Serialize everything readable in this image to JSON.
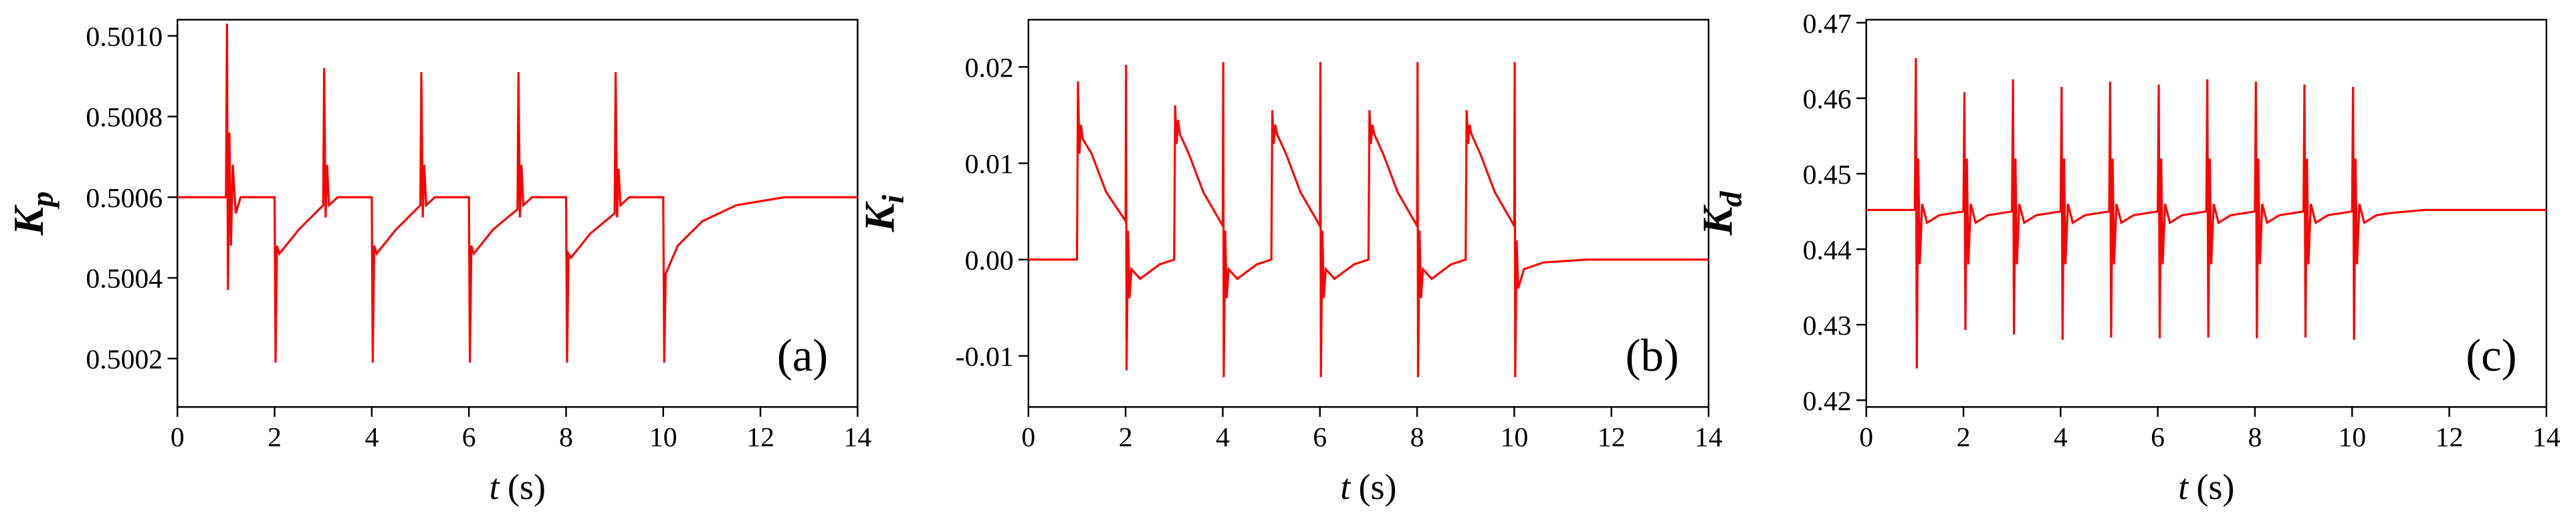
{
  "chart_data": [
    {
      "type": "line",
      "panel_label": "(a)",
      "ylabel": "K",
      "ylabel_subscript": "p",
      "xlabel_variable": "t",
      "xlabel_unit": "(s)",
      "color": "#ff0000",
      "xlim": [
        0,
        14
      ],
      "xticks": [
        0,
        2,
        4,
        6,
        8,
        10,
        12,
        14
      ],
      "ylim": [
        0.50008,
        0.50104
      ],
      "yticks": [
        0.5002,
        0.5004,
        0.5006,
        0.5008,
        {
          "value": 0.501,
          "label": "0.5010"
        }
      ],
      "x": [
        0,
        1,
        1.02,
        1.04,
        1.07,
        1.1,
        1.14,
        1.2,
        1.3,
        2,
        2.02,
        2.05,
        2.1,
        2.5,
        3,
        3.02,
        3.05,
        3.08,
        3.12,
        3.3,
        4,
        4.02,
        4.05,
        4.1,
        4.5,
        5,
        5.02,
        5.05,
        5.08,
        5.12,
        5.3,
        6,
        6.02,
        6.05,
        6.1,
        6.5,
        7,
        7.02,
        7.05,
        7.08,
        7.12,
        7.3,
        8,
        8.02,
        8.05,
        8.1,
        8.5,
        9,
        9.02,
        9.05,
        9.08,
        9.12,
        9.3,
        10,
        10.02,
        10.05,
        10.3,
        10.8,
        11.5,
        12.5,
        14
      ],
      "values": [
        0.5006,
        0.5006,
        0.50103,
        0.50037,
        0.50076,
        0.50048,
        0.50068,
        0.50056,
        0.5006,
        0.5006,
        0.50019,
        0.50048,
        0.50046,
        0.50052,
        0.50058,
        0.50092,
        0.50055,
        0.50068,
        0.50058,
        0.5006,
        0.5006,
        0.50019,
        0.50048,
        0.50046,
        0.50052,
        0.50058,
        0.50091,
        0.50055,
        0.50068,
        0.50058,
        0.5006,
        0.5006,
        0.50019,
        0.50048,
        0.50046,
        0.50052,
        0.50057,
        0.50091,
        0.50055,
        0.50068,
        0.50058,
        0.5006,
        0.5006,
        0.50019,
        0.50046,
        0.50045,
        0.50051,
        0.50056,
        0.50091,
        0.50055,
        0.50067,
        0.50058,
        0.5006,
        0.5006,
        0.50019,
        0.50041,
        0.50048,
        0.50054,
        0.50058,
        0.5006,
        0.5006
      ]
    },
    {
      "type": "line",
      "panel_label": "(b)",
      "ylabel": "K",
      "ylabel_subscript": "i",
      "xlabel_variable": "t",
      "xlabel_unit": "(s)",
      "color": "#ff0000",
      "xlim": [
        0,
        14
      ],
      "xticks": [
        0,
        2,
        4,
        6,
        8,
        10,
        12,
        14
      ],
      "ylim": [
        -0.0153,
        0.0249
      ],
      "yticks": [
        {
          "value": -0.01,
          "label": "-0.01"
        },
        {
          "value": 0,
          "label": "0.00"
        },
        0.01,
        0.02
      ],
      "x": [
        0,
        1,
        1.02,
        1.05,
        1.08,
        1.12,
        1.3,
        1.6,
        2,
        2.01,
        2.02,
        2.05,
        2.08,
        2.12,
        2.3,
        2.7,
        3,
        3.02,
        3.05,
        3.08,
        3.12,
        3.3,
        3.6,
        4,
        4.01,
        4.02,
        4.05,
        4.08,
        4.12,
        4.3,
        4.7,
        5,
        5.02,
        5.05,
        5.08,
        5.12,
        5.3,
        5.6,
        6,
        6.01,
        6.02,
        6.05,
        6.08,
        6.12,
        6.3,
        6.7,
        7,
        7.02,
        7.05,
        7.08,
        7.12,
        7.3,
        7.6,
        8,
        8.01,
        8.02,
        8.05,
        8.08,
        8.12,
        8.3,
        8.7,
        9,
        9.02,
        9.05,
        9.08,
        9.12,
        9.3,
        9.6,
        10,
        10.01,
        10.02,
        10.05,
        10.08,
        10.2,
        10.6,
        11.5,
        14
      ],
      "values": [
        0,
        0,
        0.0185,
        0.011,
        0.014,
        0.0125,
        0.011,
        0.007,
        0.004,
        0.0202,
        -0.0115,
        0.003,
        -0.004,
        -0.001,
        -0.002,
        -0.0005,
        0,
        0.016,
        0.012,
        0.0145,
        0.013,
        0.011,
        0.007,
        0.0035,
        0.0205,
        -0.0122,
        0.003,
        -0.004,
        -0.001,
        -0.002,
        -0.0005,
        0,
        0.0155,
        0.012,
        0.014,
        0.013,
        0.011,
        0.007,
        0.0035,
        0.0205,
        -0.0122,
        0.003,
        -0.004,
        -0.001,
        -0.002,
        -0.0005,
        0,
        0.0155,
        0.012,
        0.014,
        0.013,
        0.011,
        0.007,
        0.0035,
        0.0205,
        -0.0122,
        0.003,
        -0.004,
        -0.001,
        -0.002,
        -0.0005,
        0,
        0.0155,
        0.012,
        0.014,
        0.013,
        0.011,
        0.007,
        0.0035,
        0.0205,
        -0.0122,
        0.002,
        -0.003,
        -0.001,
        -0.0003,
        0,
        0
      ]
    },
    {
      "type": "line",
      "panel_label": "(c)",
      "ylabel": "K",
      "ylabel_subscript": "d",
      "xlabel_variable": "t",
      "xlabel_unit": "(s)",
      "color": "#ff0000",
      "xlim": [
        0,
        14
      ],
      "xticks": [
        0,
        2,
        4,
        6,
        8,
        10,
        12,
        14
      ],
      "ylim": [
        0.4191,
        0.4704
      ],
      "yticks": [
        0.42,
        0.43,
        0.44,
        0.45,
        0.46,
        0.47
      ],
      "x": [
        0,
        1,
        1.02,
        1.04,
        1.07,
        1.1,
        1.15,
        1.25,
        1.5,
        2,
        2.02,
        2.04,
        2.07,
        2.1,
        2.15,
        2.25,
        2.5,
        3,
        3.02,
        3.04,
        3.07,
        3.1,
        3.15,
        3.25,
        3.5,
        4,
        4.02,
        4.04,
        4.07,
        4.1,
        4.15,
        4.25,
        4.5,
        5,
        5.02,
        5.04,
        5.07,
        5.1,
        5.15,
        5.25,
        5.5,
        6,
        6.02,
        6.04,
        6.07,
        6.1,
        6.15,
        6.25,
        6.5,
        7,
        7.02,
        7.04,
        7.07,
        7.1,
        7.15,
        7.25,
        7.5,
        8,
        8.02,
        8.04,
        8.07,
        8.1,
        8.15,
        8.25,
        8.5,
        9,
        9.02,
        9.04,
        9.07,
        9.1,
        9.15,
        9.25,
        9.5,
        10,
        10.02,
        10.04,
        10.07,
        10.1,
        10.15,
        10.25,
        10.5,
        10.8,
        11.5,
        14
      ],
      "values": [
        0.4452,
        0.4452,
        0.4653,
        0.4242,
        0.452,
        0.438,
        0.446,
        0.4435,
        0.4445,
        0.445,
        0.4608,
        0.4293,
        0.452,
        0.438,
        0.446,
        0.4435,
        0.4445,
        0.445,
        0.4625,
        0.4287,
        0.452,
        0.438,
        0.446,
        0.4435,
        0.4445,
        0.445,
        0.4615,
        0.428,
        0.452,
        0.438,
        0.446,
        0.4435,
        0.4445,
        0.445,
        0.4622,
        0.4283,
        0.452,
        0.438,
        0.446,
        0.4435,
        0.4445,
        0.445,
        0.4618,
        0.4282,
        0.452,
        0.438,
        0.446,
        0.4435,
        0.4445,
        0.445,
        0.4625,
        0.4283,
        0.452,
        0.438,
        0.446,
        0.4435,
        0.4445,
        0.445,
        0.4622,
        0.4282,
        0.452,
        0.438,
        0.446,
        0.4435,
        0.4445,
        0.445,
        0.4618,
        0.4283,
        0.452,
        0.438,
        0.446,
        0.4435,
        0.4445,
        0.445,
        0.4615,
        0.428,
        0.452,
        0.438,
        0.446,
        0.4435,
        0.4445,
        0.4448,
        0.4452,
        0.4452
      ]
    }
  ]
}
